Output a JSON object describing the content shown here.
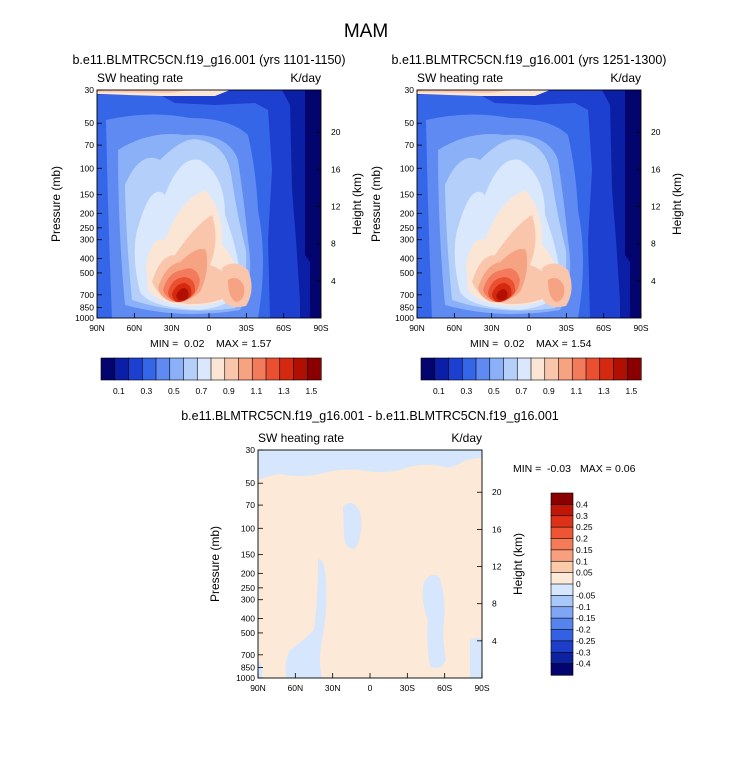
{
  "figure": {
    "title": "MAM"
  },
  "chart_data": [
    {
      "type": "heatmap",
      "title": "b.e11.BLMTRC5CN.f19_g16.001 (yrs 1101-1150)",
      "left_label": "SW heating rate",
      "right_label": "K/day",
      "ylabel": "Pressure (mb)",
      "ylabel_right": "Height (km)",
      "x_ticks": [
        "90N",
        "60N",
        "30N",
        "0",
        "30S",
        "60S",
        "90S"
      ],
      "y_ticks": [
        "30",
        "50",
        "70",
        "100",
        "150",
        "200",
        "250",
        "300",
        "400",
        "500",
        "700",
        "850",
        "1000"
      ],
      "y_ticks_right": [
        "20",
        "16",
        "12",
        "8",
        "4"
      ],
      "stats": {
        "min_label": "MIN =",
        "min": "0.02",
        "max_label": "MAX =",
        "max": "1.57"
      },
      "colorbar": {
        "levels": [
          "0.1",
          "0.3",
          "0.5",
          "0.7",
          "0.9",
          "1.1",
          "1.3",
          "1.5"
        ],
        "colors": [
          "#03046e",
          "#0b1fa6",
          "#1d40d1",
          "#3566e8",
          "#5f8af2",
          "#8ab0f7",
          "#b5cffb",
          "#dae8fd",
          "#fbe6d6",
          "#f9c6ab",
          "#f6a384",
          "#f37a5b",
          "#ea4f30",
          "#d4290f",
          "#b10f02",
          "#8a0000"
        ]
      }
    },
    {
      "type": "heatmap",
      "title": "b.e11.BLMTRC5CN.f19_g16.001 (yrs 1251-1300)",
      "left_label": "SW heating rate",
      "right_label": "K/day",
      "ylabel": "Pressure (mb)",
      "ylabel_right": "Height (km)",
      "x_ticks": [
        "90N",
        "60N",
        "30N",
        "0",
        "30S",
        "60S",
        "90S"
      ],
      "y_ticks": [
        "30",
        "50",
        "70",
        "100",
        "150",
        "200",
        "250",
        "300",
        "400",
        "500",
        "700",
        "850",
        "1000"
      ],
      "y_ticks_right": [
        "20",
        "16",
        "12",
        "8",
        "4"
      ],
      "stats": {
        "min_label": "MIN =",
        "min": "0.02",
        "max_label": "MAX =",
        "max": "1.54"
      },
      "colorbar": {
        "levels": [
          "0.1",
          "0.3",
          "0.5",
          "0.7",
          "0.9",
          "1.1",
          "1.3",
          "1.5"
        ],
        "colors": [
          "#03046e",
          "#0b1fa6",
          "#1d40d1",
          "#3566e8",
          "#5f8af2",
          "#8ab0f7",
          "#b5cffb",
          "#dae8fd",
          "#fbe6d6",
          "#f9c6ab",
          "#f6a384",
          "#f37a5b",
          "#ea4f30",
          "#d4290f",
          "#b10f02",
          "#8a0000"
        ]
      }
    },
    {
      "type": "heatmap",
      "title": "b.e11.BLMTRC5CN.f19_g16.001 - b.e11.BLMTRC5CN.f19_g16.001",
      "left_label": "SW heating rate",
      "right_label": "K/day",
      "ylabel": "Pressure (mb)",
      "ylabel_right": "Height (km)",
      "x_ticks": [
        "90N",
        "60N",
        "30N",
        "0",
        "30S",
        "60S",
        "90S"
      ],
      "y_ticks": [
        "30",
        "50",
        "70",
        "100",
        "150",
        "200",
        "250",
        "300",
        "400",
        "500",
        "700",
        "850",
        "1000"
      ],
      "y_ticks_right": [
        "20",
        "16",
        "12",
        "8",
        "4"
      ],
      "stats": {
        "min_label": "MIN =",
        "min": "-0.03",
        "max_label": "MAX =",
        "max": "0.06"
      },
      "colorbar": {
        "levels": [
          "0.4",
          "0.3",
          "0.25",
          "0.2",
          "0.15",
          "0.1",
          "0.05",
          "0",
          "-0.05",
          "-0.1",
          "-0.15",
          "-0.2",
          "-0.25",
          "-0.3",
          "-0.4"
        ],
        "colors": [
          "#8a0000",
          "#c11605",
          "#dd3218",
          "#ee5534",
          "#f57a58",
          "#f8a07e",
          "#facaa9",
          "#fde9d7",
          "#d5e6fd",
          "#aac7fa",
          "#7ea6f4",
          "#5684ee",
          "#3461e3",
          "#1c3ec9",
          "#0c22a1",
          "#03046e"
        ]
      }
    }
  ]
}
